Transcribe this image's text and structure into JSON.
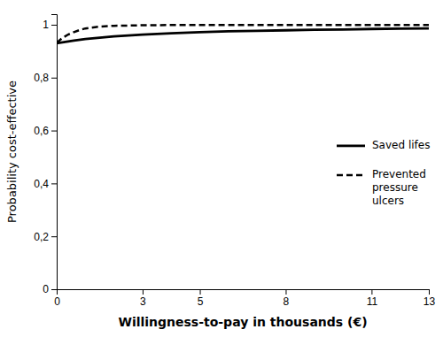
{
  "chart_data": {
    "type": "line",
    "xlabel": "Willingness-to-pay in thousands (€)",
    "ylabel": "Probability cost-effective",
    "xlim": [
      0,
      13
    ],
    "xticks": [
      0,
      3,
      5,
      8,
      11,
      13
    ],
    "ylim": [
      0,
      1.04
    ],
    "yticks": [
      0,
      {
        "value": 0.2,
        "label": "0,2"
      },
      {
        "value": 0.4,
        "label": "0,4"
      },
      {
        "value": 0.6,
        "label": "0,6"
      },
      {
        "value": 0.8,
        "label": "0,8"
      },
      1
    ],
    "grid": false,
    "legend": "right",
    "series": [
      {
        "name": "Saved lifes",
        "color": "#000000",
        "line_style": "solid",
        "x": [
          0,
          0.3,
          0.6,
          1,
          1.5,
          2,
          3,
          4,
          5,
          6,
          7,
          8,
          9,
          10,
          11,
          12,
          13
        ],
        "values": [
          0.93,
          0.935,
          0.94,
          0.946,
          0.951,
          0.956,
          0.963,
          0.968,
          0.972,
          0.975,
          0.977,
          0.979,
          0.981,
          0.982,
          0.984,
          0.985,
          0.986
        ]
      },
      {
        "name": "Prevented\npressure\nulcers",
        "color": "#000000",
        "line_style": "dashed",
        "x": [
          0,
          0.2,
          0.4,
          0.6,
          0.8,
          1,
          1.5,
          2,
          3,
          4,
          5,
          6,
          7,
          8,
          9,
          10,
          11,
          12,
          13
        ],
        "values": [
          0.932,
          0.95,
          0.963,
          0.972,
          0.98,
          0.986,
          0.993,
          0.996,
          0.998,
          0.999,
          0.999,
          0.999,
          0.999,
          0.999,
          0.999,
          0.999,
          0.999,
          0.999,
          0.999
        ]
      }
    ]
  }
}
